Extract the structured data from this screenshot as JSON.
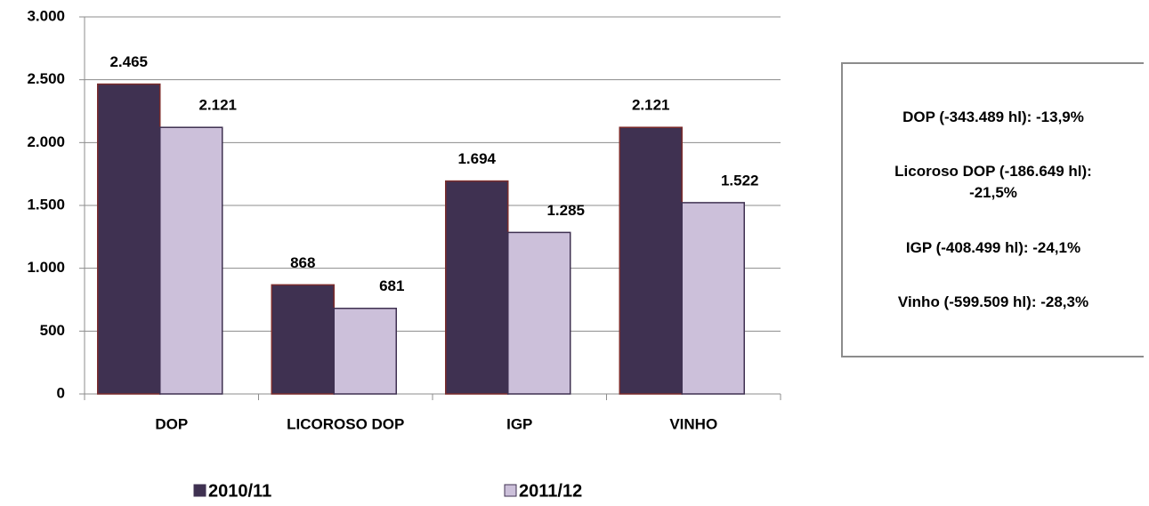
{
  "chart_data": {
    "type": "bar",
    "categories": [
      "DOP",
      "LICOROSO DOP",
      "IGP",
      "VINHO"
    ],
    "series": [
      {
        "name": "2010/11",
        "color": "#3f3151",
        "values": [
          2465,
          868,
          1694,
          2121
        ],
        "value_labels": [
          "2.465",
          "868",
          "1.694",
          "2.121"
        ]
      },
      {
        "name": "2011/12",
        "color": "#ccc0da",
        "values": [
          2121,
          681,
          1285,
          1522
        ],
        "value_labels": [
          "2.121",
          "681",
          "1.285",
          "1.522"
        ]
      }
    ],
    "ylim": [
      0,
      3000
    ],
    "yticks": [
      {
        "value": 0,
        "label": "0"
      },
      {
        "value": 500,
        "label": "500"
      },
      {
        "value": 1000,
        "label": "1.000"
      },
      {
        "value": 1500,
        "label": "1.500"
      },
      {
        "value": 2000,
        "label": "2.000"
      },
      {
        "value": 2500,
        "label": "2.500"
      },
      {
        "value": 3000,
        "label": "3.000"
      }
    ],
    "grid": true,
    "legend": "bottom",
    "annotations": [
      "DOP (-343.489 hl): -13,9%",
      "Licoroso DOP (-186.649 hl): -21,5%",
      "IGP (-408.499 hl): -24,1%",
      "Vinho (-599.509 hl): -28,3%"
    ]
  }
}
